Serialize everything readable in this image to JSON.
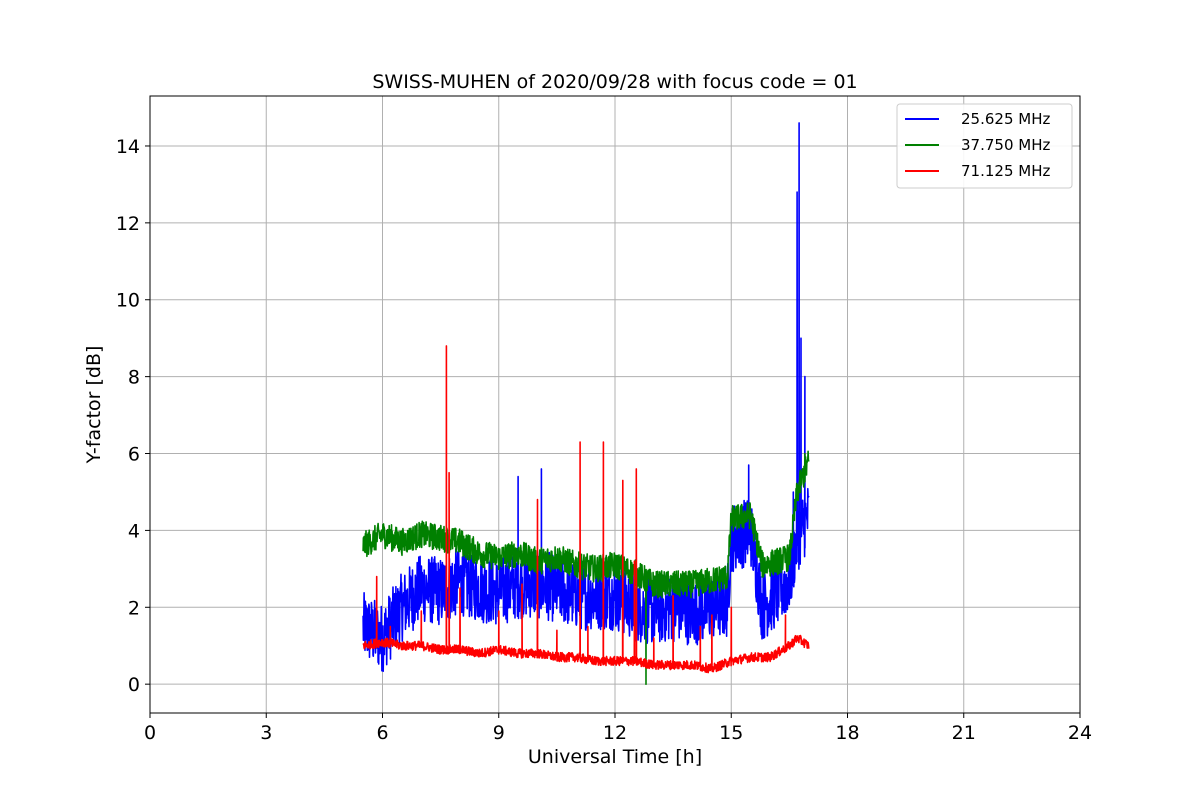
{
  "chart_data": {
    "type": "line",
    "title": "SWISS-MUHEN of 2020/09/28 with focus code = 01",
    "xlabel": "Universal Time [h]",
    "ylabel": "Y-factor [dB]",
    "xlim": [
      0,
      24
    ],
    "ylim": [
      -0.75,
      15.3
    ],
    "xticks": [
      0,
      3,
      6,
      9,
      12,
      15,
      18,
      21,
      24
    ],
    "yticks": [
      0,
      2,
      4,
      6,
      8,
      10,
      12,
      14
    ],
    "grid": true,
    "legend_position": "top-right",
    "series": [
      {
        "name": "25.625 MHz",
        "color": "#0000ff",
        "base": [
          [
            5.5,
            1.5
          ],
          [
            6.0,
            1.2
          ],
          [
            6.5,
            2.0
          ],
          [
            7.0,
            2.5
          ],
          [
            7.5,
            2.4
          ],
          [
            8.0,
            2.7
          ],
          [
            8.5,
            2.5
          ],
          [
            9.0,
            2.4
          ],
          [
            9.5,
            2.6
          ],
          [
            10.0,
            2.6
          ],
          [
            10.5,
            2.5
          ],
          [
            11.0,
            2.3
          ],
          [
            11.5,
            2.3
          ],
          [
            12.0,
            2.3
          ],
          [
            12.5,
            2.0
          ],
          [
            13.0,
            1.9
          ],
          [
            13.5,
            2.0
          ],
          [
            14.0,
            1.9
          ],
          [
            14.5,
            2.0
          ],
          [
            14.9,
            2.1
          ],
          [
            15.0,
            3.8
          ],
          [
            15.5,
            4.0
          ],
          [
            15.8,
            2.0
          ],
          [
            16.2,
            2.4
          ],
          [
            16.5,
            2.7
          ],
          [
            16.7,
            3.8
          ],
          [
            17.0,
            4.4
          ]
        ],
        "noise": 0.9,
        "spikes": [
          [
            16.6,
            5.0
          ],
          [
            16.7,
            12.8
          ],
          [
            16.75,
            14.6
          ],
          [
            16.8,
            9.0
          ],
          [
            16.9,
            8.0
          ],
          [
            10.1,
            5.6
          ],
          [
            9.5,
            5.4
          ],
          [
            15.45,
            5.7
          ]
        ]
      },
      {
        "name": "37.750 MHz",
        "color": "#008000",
        "base": [
          [
            5.5,
            3.6
          ],
          [
            6.0,
            3.9
          ],
          [
            6.5,
            3.7
          ],
          [
            7.0,
            3.9
          ],
          [
            7.5,
            3.8
          ],
          [
            8.0,
            3.7
          ],
          [
            8.5,
            3.4
          ],
          [
            9.0,
            3.3
          ],
          [
            9.5,
            3.4
          ],
          [
            10.0,
            3.2
          ],
          [
            10.5,
            3.3
          ],
          [
            11.0,
            3.1
          ],
          [
            11.5,
            3.0
          ],
          [
            12.0,
            3.1
          ],
          [
            12.5,
            2.9
          ],
          [
            13.0,
            2.6
          ],
          [
            13.5,
            2.6
          ],
          [
            14.0,
            2.6
          ],
          [
            14.5,
            2.7
          ],
          [
            14.9,
            2.8
          ],
          [
            15.0,
            4.3
          ],
          [
            15.5,
            4.4
          ],
          [
            15.8,
            3.1
          ],
          [
            16.2,
            3.2
          ],
          [
            16.5,
            3.3
          ],
          [
            16.7,
            5.0
          ],
          [
            17.0,
            5.8
          ]
        ],
        "noise": 0.35,
        "spikes": [
          [
            12.8,
            0.0
          ],
          [
            16.9,
            6.0
          ]
        ]
      },
      {
        "name": "71.125 MHz",
        "color": "#ff0000",
        "base": [
          [
            5.5,
            1.0
          ],
          [
            6.0,
            1.1
          ],
          [
            6.5,
            1.0
          ],
          [
            7.0,
            1.0
          ],
          [
            7.5,
            0.9
          ],
          [
            8.0,
            0.9
          ],
          [
            8.5,
            0.8
          ],
          [
            9.0,
            0.9
          ],
          [
            9.5,
            0.8
          ],
          [
            10.0,
            0.8
          ],
          [
            10.5,
            0.7
          ],
          [
            11.0,
            0.7
          ],
          [
            11.5,
            0.6
          ],
          [
            12.0,
            0.6
          ],
          [
            12.5,
            0.6
          ],
          [
            13.0,
            0.5
          ],
          [
            13.5,
            0.5
          ],
          [
            14.0,
            0.5
          ],
          [
            14.5,
            0.4
          ],
          [
            15.0,
            0.6
          ],
          [
            15.5,
            0.7
          ],
          [
            16.0,
            0.7
          ],
          [
            16.5,
            1.0
          ],
          [
            16.7,
            1.2
          ],
          [
            17.0,
            1.0
          ]
        ],
        "noise": 0.12,
        "spikes": [
          [
            5.85,
            2.8
          ],
          [
            6.2,
            1.5
          ],
          [
            7.0,
            1.9
          ],
          [
            7.65,
            8.8
          ],
          [
            7.72,
            5.5
          ],
          [
            8.0,
            2.5
          ],
          [
            9.0,
            1.9
          ],
          [
            9.6,
            2.6
          ],
          [
            10.0,
            4.8
          ],
          [
            10.5,
            1.4
          ],
          [
            11.1,
            6.3
          ],
          [
            11.3,
            1.5
          ],
          [
            11.7,
            6.3
          ],
          [
            12.2,
            5.3
          ],
          [
            12.5,
            3.2
          ],
          [
            12.55,
            5.6
          ],
          [
            13.0,
            1.2
          ],
          [
            13.5,
            2.3
          ],
          [
            14.2,
            1.5
          ],
          [
            14.5,
            1.8
          ],
          [
            15.0,
            2.0
          ],
          [
            16.4,
            1.8
          ]
        ]
      }
    ]
  }
}
